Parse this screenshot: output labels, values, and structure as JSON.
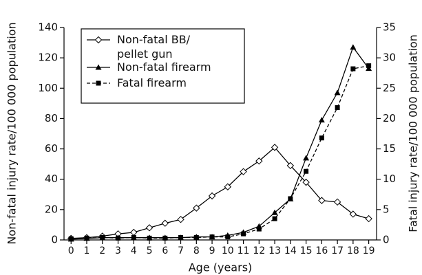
{
  "chart_data": {
    "type": "line",
    "x_label": "Age (years)",
    "y_label": "Non-fatal injury rate/100 000 population",
    "y2_label": "Fatal injury rate/100 000 population",
    "x": [
      0,
      1,
      2,
      3,
      4,
      5,
      6,
      7,
      8,
      9,
      10,
      11,
      12,
      13,
      14,
      15,
      16,
      17,
      18,
      19
    ],
    "xlim": [
      -0.45,
      19.5
    ],
    "xticks": [
      0,
      1,
      2,
      3,
      4,
      5,
      6,
      7,
      8,
      9,
      10,
      11,
      12,
      13,
      14,
      15,
      16,
      17,
      18,
      19
    ],
    "ylim": [
      0,
      140
    ],
    "yticks": [
      0,
      20,
      40,
      60,
      80,
      100,
      120,
      140
    ],
    "y2lim": [
      0,
      35
    ],
    "y2ticks": [
      0,
      5,
      10,
      15,
      20,
      25,
      30,
      35
    ],
    "legend": "upper left",
    "series": [
      {
        "name": "Non-fatal BB/\npellet gun",
        "color": "#000000",
        "marker": "diamond",
        "dash": "solid",
        "axis": "y",
        "values": [
          1,
          1.5,
          2.5,
          4,
          5,
          8,
          11,
          13.5,
          21,
          29,
          35,
          45,
          52,
          61,
          49,
          38,
          26,
          25,
          17,
          14
        ]
      },
      {
        "name": "Non-fatal firearm",
        "color": "#000000",
        "marker": "triangle",
        "dash": "solid",
        "axis": "y",
        "values": [
          0.5,
          1,
          1.5,
          1.5,
          1.5,
          1.5,
          1.5,
          1.5,
          2,
          2,
          3,
          5,
          9,
          18,
          27,
          54,
          79,
          97,
          127,
          113
        ]
      },
      {
        "name": "Fatal firearm",
        "color": "#000000",
        "marker": "square",
        "dash": "dashed",
        "axis": "y2",
        "values": [
          0.2,
          0.3,
          0.4,
          0.3,
          0.4,
          0.3,
          0.3,
          0.4,
          0.4,
          0.5,
          0.5,
          1,
          1.8,
          3.5,
          6.8,
          11.3,
          16.8,
          21.8,
          28.2,
          28.7
        ]
      }
    ]
  }
}
